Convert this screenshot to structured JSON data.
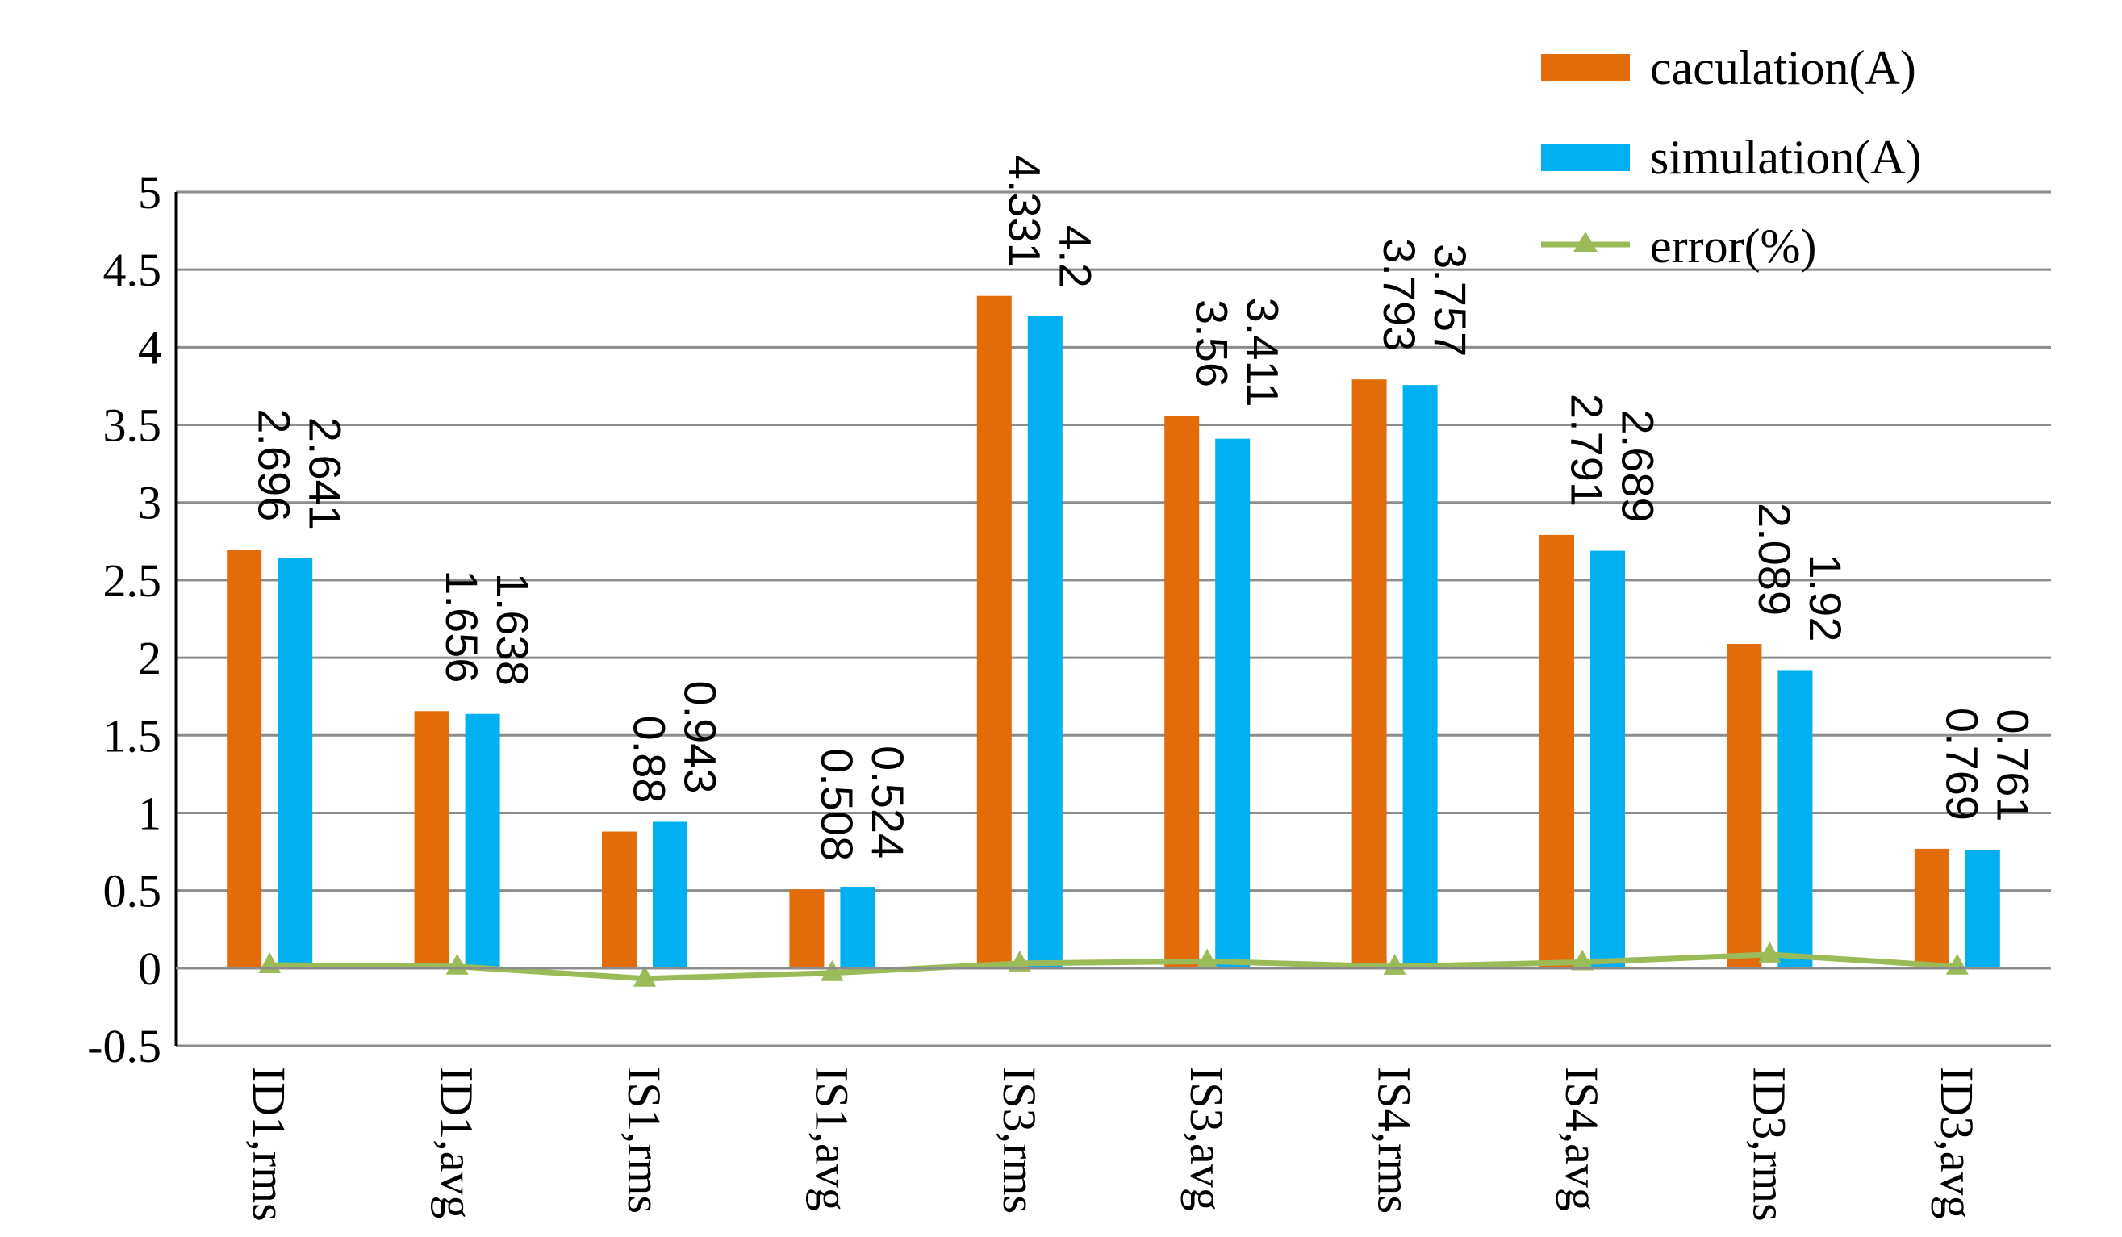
{
  "chart_data": {
    "type": "bar",
    "categories": [
      "ID1,rms",
      "ID1,avg",
      "IS1,rms",
      "IS1,avg",
      "IS3,rms",
      "IS3,avg",
      "IS4,rms",
      "IS4,avg",
      "ID3,rms",
      "ID3,avg"
    ],
    "series": [
      {
        "name": "caculation(A)",
        "type": "bar",
        "color": "#E36C0A",
        "values": [
          2.696,
          1.656,
          0.88,
          0.508,
          4.331,
          3.56,
          3.793,
          2.791,
          2.089,
          0.769
        ],
        "labels": [
          "2.696",
          "1.656",
          "0.88",
          "0.508",
          "4.331",
          "3.56",
          "3.793",
          "2.791",
          "2.089",
          "0.769"
        ]
      },
      {
        "name": "simulation(A)",
        "type": "bar",
        "color": "#00B0F0",
        "values": [
          2.641,
          1.638,
          0.943,
          0.524,
          4.2,
          3.411,
          3.757,
          2.689,
          1.92,
          0.761
        ],
        "labels": [
          "2.641",
          "1.638",
          "0.943",
          "0.524",
          "4.2",
          "3.411",
          "3.757",
          "2.689",
          "1.92",
          "0.761"
        ]
      },
      {
        "name": "error(%)",
        "type": "line",
        "color": "#9BBB59",
        "marker": "triangle",
        "values": [
          0.02,
          0.011,
          -0.067,
          -0.031,
          0.031,
          0.044,
          0.01,
          0.038,
          0.088,
          0.011
        ]
      }
    ],
    "ylim": [
      -0.5,
      5
    ],
    "yticks": [
      "5",
      "4.5",
      "4",
      "3.5",
      "3",
      "2.5",
      "2",
      "1.5",
      "1",
      "0.5",
      "0",
      "-0.5"
    ],
    "grid": true,
    "legend_position": "top-right",
    "title": "",
    "xlabel": "",
    "ylabel": ""
  }
}
